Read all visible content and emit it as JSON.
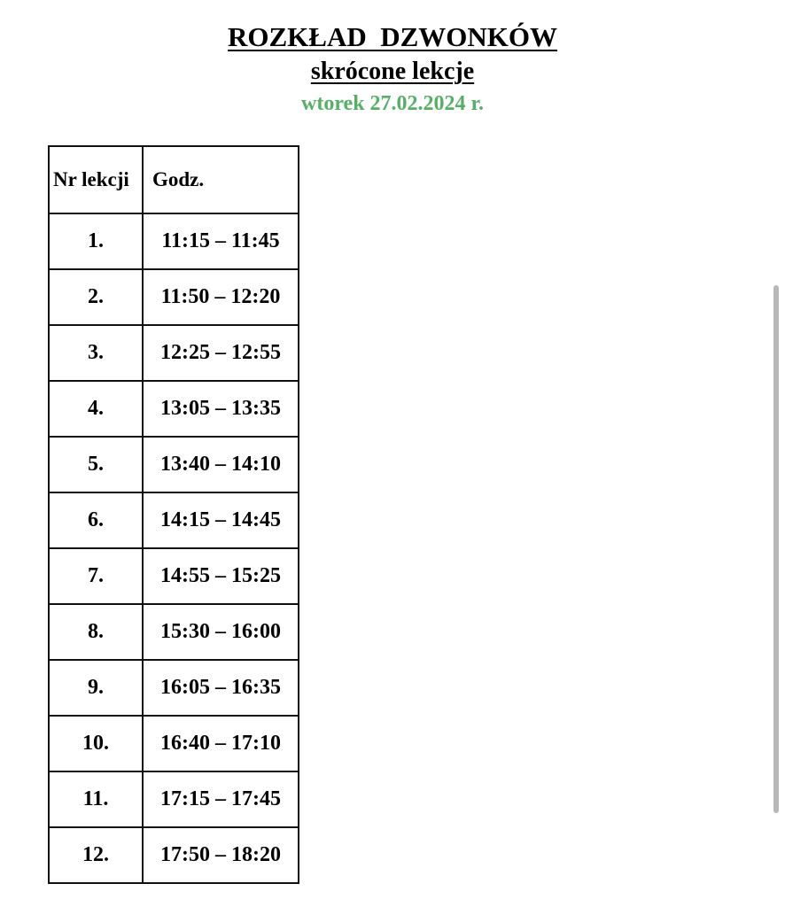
{
  "header": {
    "title": "ROZKŁAD  DZWONKÓW",
    "subtitle": "skrócone lekcje",
    "date": "wtorek 27.02.2024 r.",
    "date_color": "#55b065"
  },
  "table": {
    "columns": [
      "Nr lekcji",
      "Godz."
    ],
    "rows": [
      {
        "nr": "1.",
        "time": "11:15 – 11:45"
      },
      {
        "nr": "2.",
        "time": "11:50 – 12:20"
      },
      {
        "nr": "3.",
        "time": "12:25 – 12:55"
      },
      {
        "nr": "4.",
        "time": "13:05 – 13:35"
      },
      {
        "nr": "5.",
        "time": "13:40 – 14:10"
      },
      {
        "nr": "6.",
        "time": "14:15 – 14:45"
      },
      {
        "nr": "7.",
        "time": "14:55 – 15:25"
      },
      {
        "nr": "8.",
        "time": "15:30 – 16:00"
      },
      {
        "nr": "9.",
        "time": "16:05 – 16:35"
      },
      {
        "nr": "10.",
        "time": "16:40 – 17:10"
      },
      {
        "nr": "11.",
        "time": "17:15 – 17:45"
      },
      {
        "nr": "12.",
        "time": "17:50 – 18:20"
      }
    ]
  }
}
